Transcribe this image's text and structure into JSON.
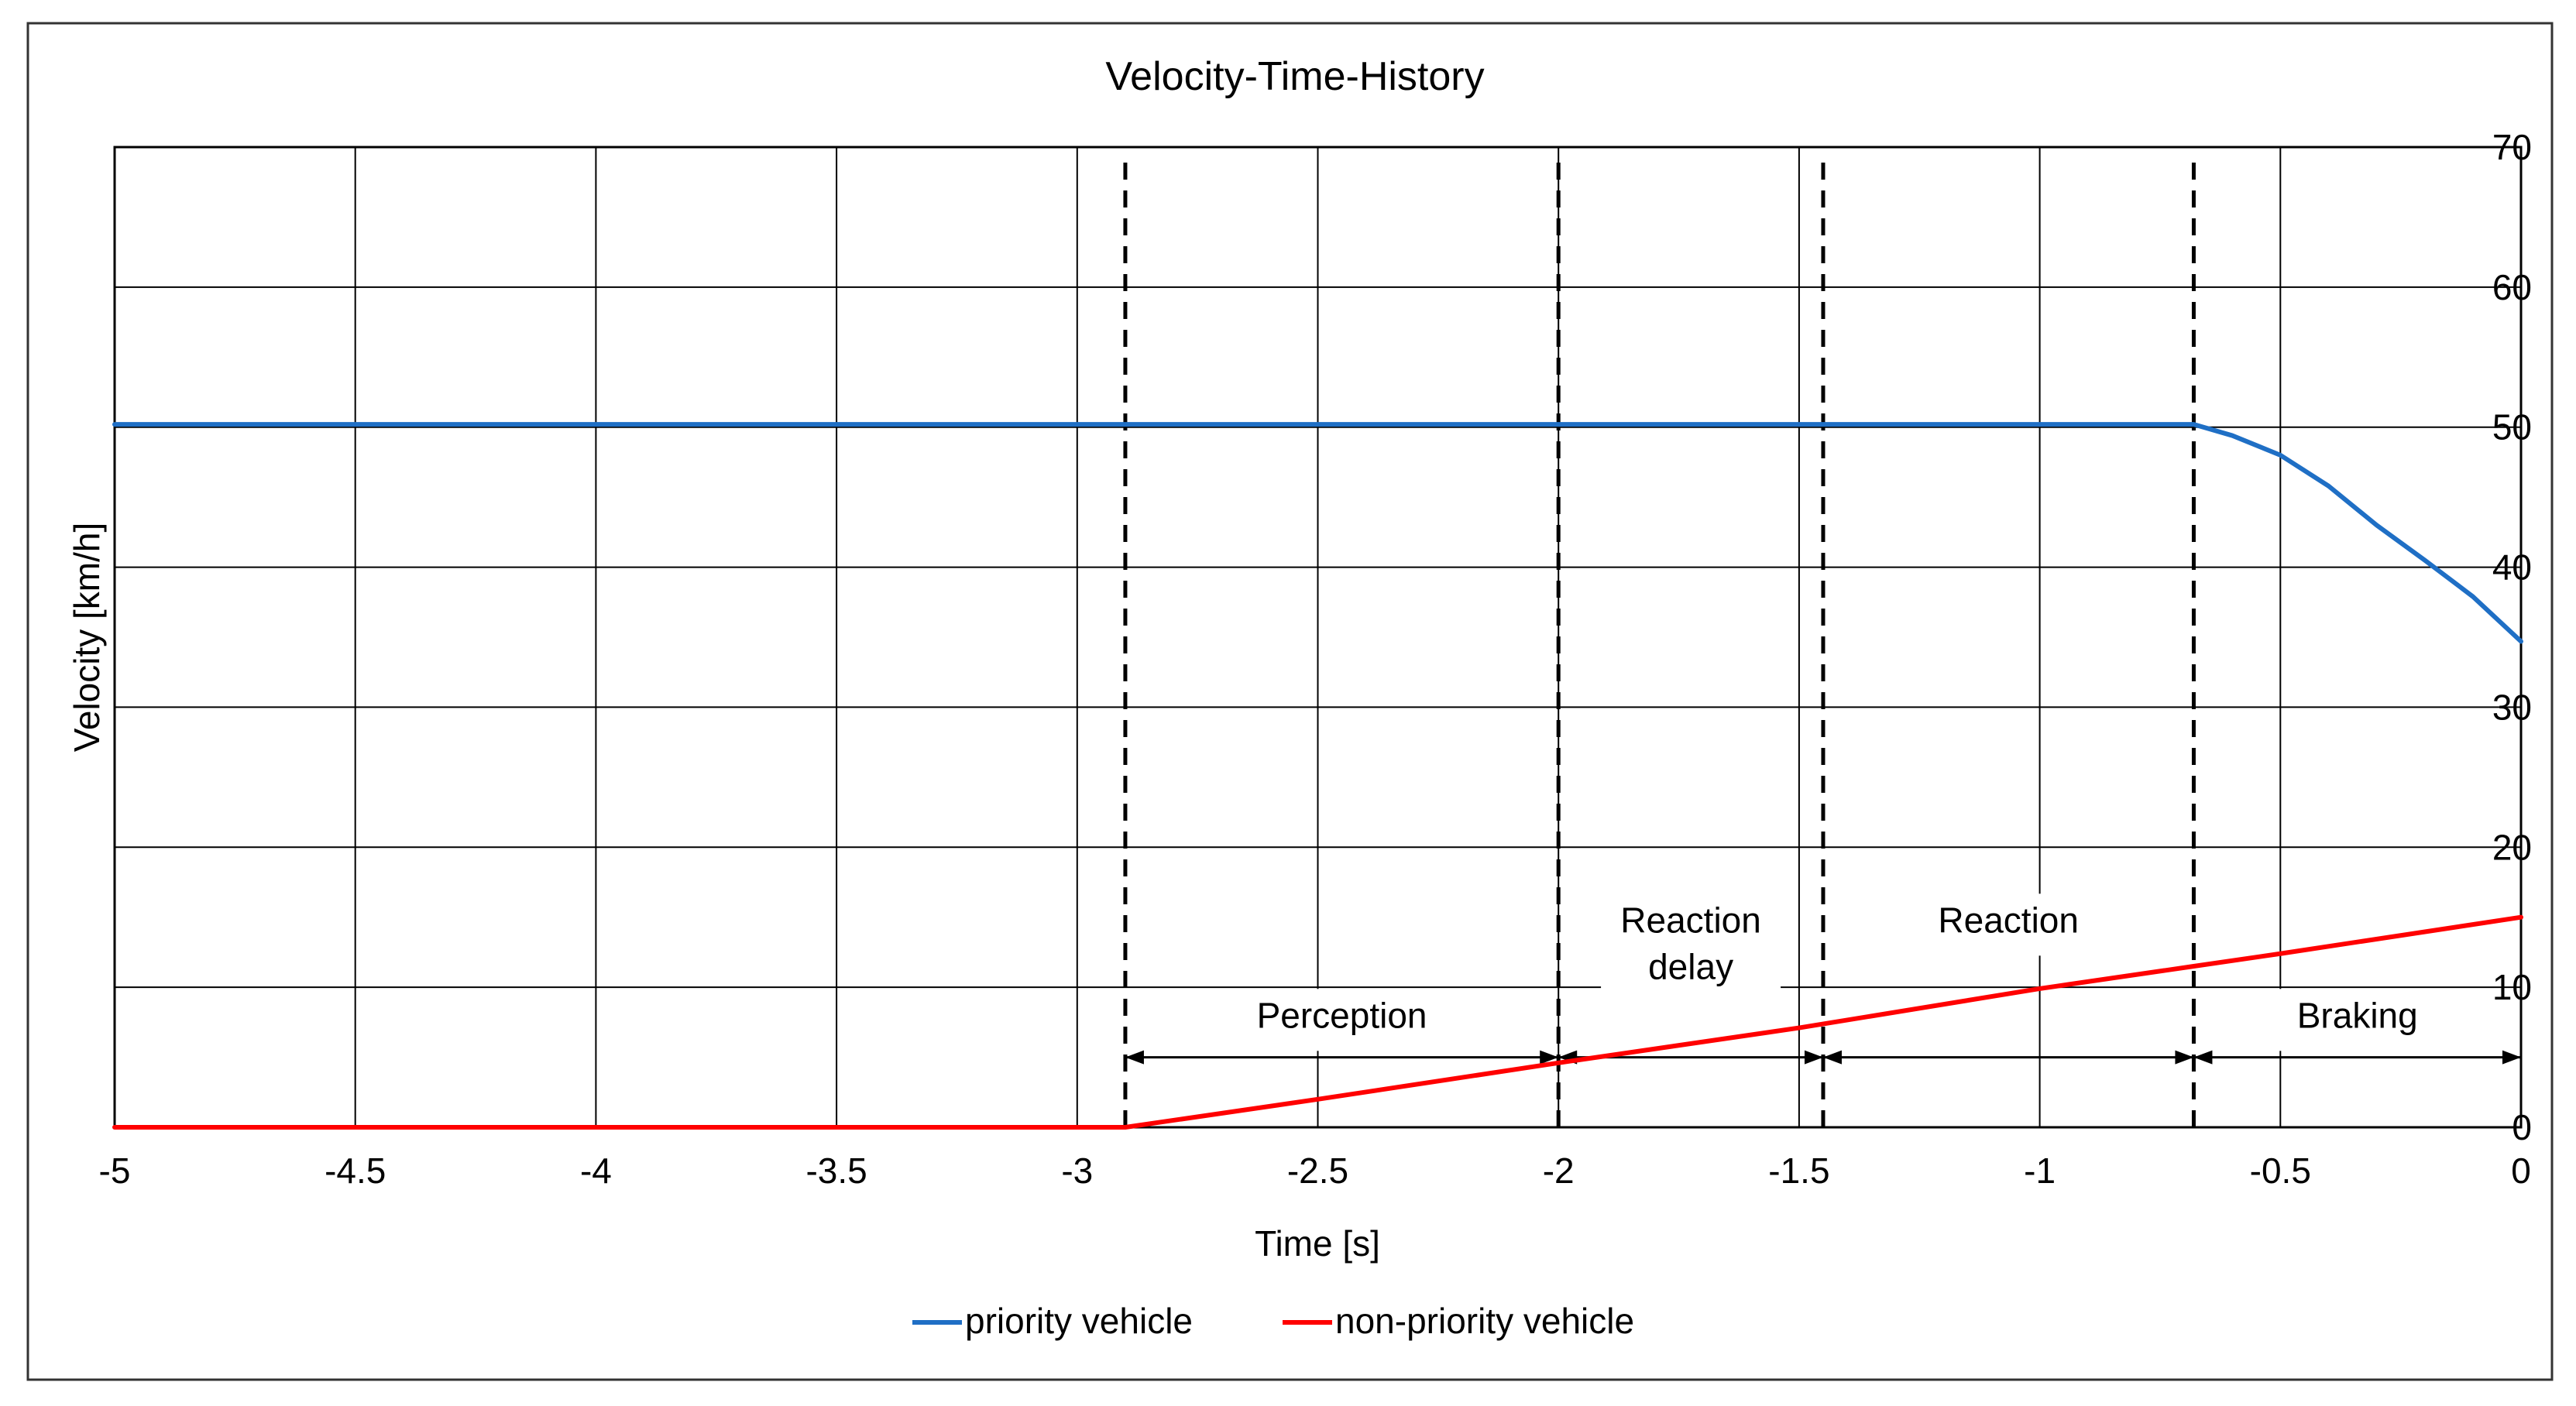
{
  "chart_data": {
    "type": "line",
    "title": "Velocity-Time-History",
    "xlabel": "Time [s]",
    "ylabel": "Velocity [km/h]",
    "xlim": [
      -5,
      0
    ],
    "ylim": [
      0,
      70
    ],
    "grid": true,
    "x_ticks": [
      -5,
      -4.5,
      -4,
      -3.5,
      -3,
      -2.5,
      -2,
      -1.5,
      -1,
      -0.5,
      0
    ],
    "x_tick_labels": [
      "-5",
      "-4.5",
      "-4",
      "-3.5",
      "-3",
      "-2.5",
      "-2",
      "-1.5",
      "-1",
      "-0.5",
      "0"
    ],
    "y_ticks": [
      0,
      10,
      20,
      30,
      40,
      50,
      60,
      70
    ],
    "y_tick_labels": [
      "0",
      "10",
      "20",
      "30",
      "40",
      "50",
      "60",
      "70"
    ],
    "y_axis_side": "right",
    "legend_position": "bottom-center",
    "series": [
      {
        "name": "priority vehicle",
        "color": "#1f6fc5",
        "x": [
          -5,
          -0.68,
          -0.6,
          -0.5,
          -0.4,
          -0.3,
          -0.2,
          -0.1,
          0
        ],
        "values": [
          50.2,
          50.2,
          49.4,
          48.0,
          45.8,
          43.0,
          40.5,
          37.9,
          34.7
        ]
      },
      {
        "name": "non-priority vehicle",
        "color": "#ff0000",
        "x": [
          -5,
          -2.9,
          -2.5,
          -2.0,
          -1.5,
          -1.0,
          -0.68,
          -0.5,
          0
        ],
        "values": [
          0,
          0,
          2.0,
          4.6,
          7.1,
          9.9,
          11.5,
          12.4,
          15.0
        ]
      }
    ],
    "phase_boundaries": [
      -2.9,
      -2.0,
      -1.45,
      -0.68
    ],
    "phases": [
      {
        "label_lines": [
          "Perception"
        ],
        "x_start": -2.9,
        "x_end": -2.0,
        "label_y": 8
      },
      {
        "label_lines": [
          "Reaction",
          "delay"
        ],
        "x_start": -2.0,
        "x_end": -1.45,
        "label_y": 14.8
      },
      {
        "label_lines": [
          "Reaction"
        ],
        "x_start": -1.45,
        "x_end": -0.68,
        "label_y": 14.8
      },
      {
        "label_lines": [
          "Braking"
        ],
        "x_start": -0.68,
        "x_end": 0,
        "label_y": 8
      }
    ],
    "phase_arrow_y": 5
  }
}
